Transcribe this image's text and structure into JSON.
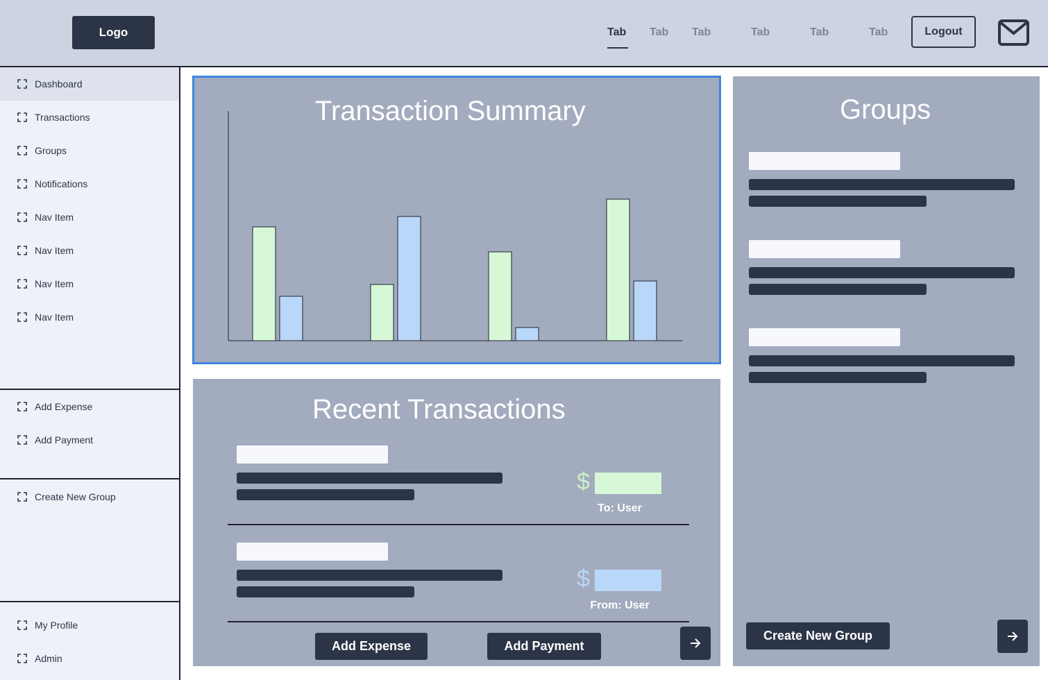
{
  "header": {
    "logo": "Logo",
    "tabs": [
      "Tab",
      "Tab",
      "Tab",
      "Tab",
      "Tab",
      "Tab"
    ],
    "logout": "Logout"
  },
  "sidebar": {
    "items": [
      "Dashboard",
      "Transactions",
      "Groups",
      "Notifications",
      "Nav Item",
      "Nav Item",
      "Nav Item",
      "Nav Item"
    ],
    "actions": [
      "Add Expense",
      "Add Payment"
    ],
    "group_action": "Create New Group",
    "bottom": [
      "My Profile",
      "Admin"
    ]
  },
  "summary": {
    "title": "Transaction Summary"
  },
  "chart_data": {
    "type": "bar",
    "title": "Transaction Summary",
    "categories": [
      "",
      "",
      "",
      ""
    ],
    "series": [
      {
        "values": [
          164,
          81,
          128,
          204
        ]
      },
      {
        "values": [
          64,
          179,
          19,
          86
        ]
      }
    ],
    "ylim": [
      0,
      331
    ],
    "grid": false,
    "legend": "none",
    "colors": [
      "#d6f8d6",
      "#b9d7f8"
    ]
  },
  "recent": {
    "title": "Recent Transactions",
    "rows": [
      {
        "currency": "$",
        "label": "To: User",
        "color": "#d6f8d6",
        "dollar_color": "#c8f2c8"
      },
      {
        "currency": "$",
        "label": "From: User",
        "color": "#b9d7f8",
        "dollar_color": "#b9d7f8"
      }
    ],
    "add_expense": "Add Expense",
    "add_payment": "Add Payment"
  },
  "groups": {
    "title": "Groups",
    "create_button": "Create New Group"
  },
  "colors": {
    "accent": "#3d87e0",
    "dark": "#2c3447",
    "panel": "#a3abbe",
    "header_bg": "#cdd3e0",
    "sidebar_bg": "#eef1f8"
  }
}
